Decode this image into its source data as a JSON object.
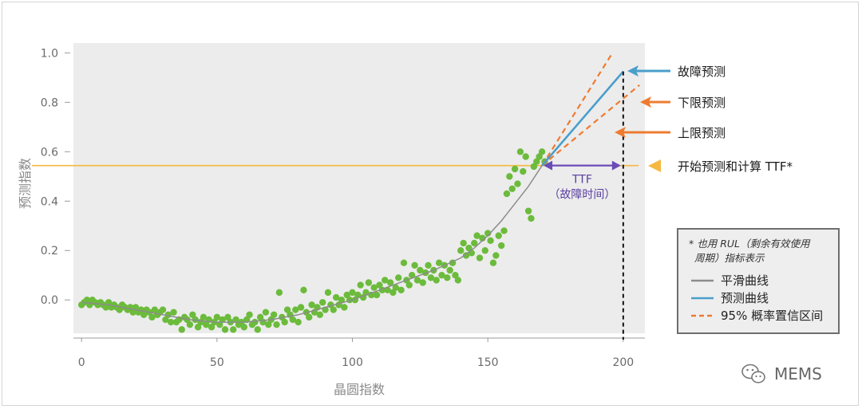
{
  "chart_data": {
    "type": "scatter",
    "xlabel": "晶圆指数",
    "ylabel": "预测指数",
    "xlim": [
      -3,
      208
    ],
    "ylim": [
      -0.135,
      1.04
    ],
    "x_ticks": [
      "0",
      "50",
      "100",
      "150",
      "200"
    ],
    "y_ticks": [
      "0.0",
      "0.2",
      "0.4",
      "0.6",
      "0.8",
      "1.0"
    ],
    "threshold": 0.544,
    "failure_x": 200,
    "scatter_points": [
      [
        0,
        -0.02
      ],
      [
        1,
        -0.01
      ],
      [
        2,
        0.0
      ],
      [
        3,
        -0.02
      ],
      [
        4,
        0.0
      ],
      [
        5,
        -0.01
      ],
      [
        6,
        -0.02
      ],
      [
        7,
        -0.01
      ],
      [
        8,
        -0.02
      ],
      [
        9,
        -0.03
      ],
      [
        10,
        -0.01
      ],
      [
        11,
        -0.03
      ],
      [
        12,
        -0.02
      ],
      [
        13,
        -0.03
      ],
      [
        14,
        -0.04
      ],
      [
        15,
        -0.02
      ],
      [
        16,
        -0.03
      ],
      [
        17,
        -0.04
      ],
      [
        18,
        -0.03
      ],
      [
        19,
        -0.05
      ],
      [
        20,
        -0.03
      ],
      [
        21,
        -0.05
      ],
      [
        22,
        -0.04
      ],
      [
        23,
        -0.06
      ],
      [
        24,
        -0.04
      ],
      [
        25,
        -0.05
      ],
      [
        26,
        -0.07
      ],
      [
        27,
        -0.04
      ],
      [
        28,
        -0.06
      ],
      [
        29,
        -0.05
      ],
      [
        30,
        -0.04
      ],
      [
        31,
        -0.08
      ],
      [
        32,
        -0.06
      ],
      [
        33,
        -0.09
      ],
      [
        34,
        -0.05
      ],
      [
        35,
        -0.09
      ],
      [
        36,
        -0.08
      ],
      [
        37,
        -0.12
      ],
      [
        38,
        -0.07
      ],
      [
        39,
        -0.08
      ],
      [
        40,
        -0.1
      ],
      [
        41,
        -0.06
      ],
      [
        42,
        -0.08
      ],
      [
        43,
        -0.11
      ],
      [
        44,
        -0.09
      ],
      [
        45,
        -0.07
      ],
      [
        46,
        -0.1
      ],
      [
        47,
        -0.08
      ],
      [
        48,
        -0.11
      ],
      [
        49,
        -0.09
      ],
      [
        50,
        -0.07
      ],
      [
        51,
        -0.1
      ],
      [
        52,
        -0.08
      ],
      [
        53,
        -0.12
      ],
      [
        54,
        -0.07
      ],
      [
        55,
        -0.09
      ],
      [
        56,
        -0.12
      ],
      [
        57,
        -0.08
      ],
      [
        58,
        -0.1
      ],
      [
        59,
        -0.09
      ],
      [
        60,
        -0.11
      ],
      [
        61,
        -0.08
      ],
      [
        62,
        -0.06
      ],
      [
        63,
        -0.1
      ],
      [
        64,
        -0.09
      ],
      [
        65,
        -0.12
      ],
      [
        66,
        -0.07
      ],
      [
        67,
        -0.09
      ],
      [
        68,
        -0.05
      ],
      [
        69,
        -0.1
      ],
      [
        70,
        -0.08
      ],
      [
        71,
        -0.06
      ],
      [
        72,
        -0.1
      ],
      [
        73,
        0.03
      ],
      [
        74,
        -0.07
      ],
      [
        75,
        -0.09
      ],
      [
        76,
        -0.04
      ],
      [
        77,
        -0.06
      ],
      [
        78,
        -0.08
      ],
      [
        79,
        -0.04
      ],
      [
        80,
        -0.09
      ],
      [
        81,
        -0.03
      ],
      [
        82,
        0.04
      ],
      [
        83,
        -0.05
      ],
      [
        84,
        -0.07
      ],
      [
        85,
        -0.02
      ],
      [
        86,
        -0.05
      ],
      [
        87,
        -0.03
      ],
      [
        88,
        -0.06
      ],
      [
        89,
        -0.01
      ],
      [
        90,
        -0.04
      ],
      [
        91,
        0.03
      ],
      [
        92,
        -0.02
      ],
      [
        93,
        -0.04
      ],
      [
        94,
        0.01
      ],
      [
        95,
        -0.02
      ],
      [
        96,
        0.0
      ],
      [
        97,
        -0.03
      ],
      [
        98,
        0.02
      ],
      [
        99,
        0.0
      ],
      [
        100,
        0.03
      ],
      [
        101,
        0.0
      ],
      [
        102,
        0.02
      ],
      [
        103,
        0.06
      ],
      [
        104,
        0.01
      ],
      [
        105,
        0.03
      ],
      [
        106,
        0.07
      ],
      [
        107,
        0.02
      ],
      [
        108,
        0.05
      ],
      [
        109,
        0.02
      ],
      [
        110,
        0.06
      ],
      [
        111,
        0.04
      ],
      [
        112,
        0.08
      ],
      [
        113,
        0.04
      ],
      [
        114,
        0.07
      ],
      [
        115,
        0.03
      ],
      [
        116,
        0.05
      ],
      [
        117,
        0.09
      ],
      [
        118,
        0.04
      ],
      [
        119,
        0.15
      ],
      [
        120,
        0.08
      ],
      [
        121,
        0.06
      ],
      [
        122,
        0.1
      ],
      [
        123,
        0.14
      ],
      [
        124,
        0.08
      ],
      [
        125,
        0.12
      ],
      [
        126,
        0.07
      ],
      [
        127,
        0.11
      ],
      [
        128,
        0.14
      ],
      [
        129,
        0.09
      ],
      [
        130,
        0.12
      ],
      [
        131,
        0.08
      ],
      [
        132,
        0.15
      ],
      [
        133,
        0.1
      ],
      [
        134,
        0.14
      ],
      [
        135,
        0.09
      ],
      [
        136,
        0.12
      ],
      [
        137,
        0.15
      ],
      [
        138,
        0.1
      ],
      [
        139,
        0.08
      ],
      [
        140,
        0.2
      ],
      [
        141,
        0.23
      ],
      [
        142,
        0.18
      ],
      [
        143,
        0.21
      ],
      [
        144,
        0.19
      ],
      [
        145,
        0.23
      ],
      [
        146,
        0.26
      ],
      [
        147,
        0.17
      ],
      [
        148,
        0.25
      ],
      [
        149,
        0.2
      ],
      [
        150,
        0.27
      ],
      [
        151,
        0.24
      ],
      [
        152,
        0.15
      ],
      [
        153,
        0.18
      ],
      [
        154,
        0.26
      ],
      [
        155,
        0.22
      ],
      [
        156,
        0.28
      ],
      [
        157,
        0.43
      ],
      [
        158,
        0.5
      ],
      [
        159,
        0.45
      ],
      [
        160,
        0.53
      ],
      [
        161,
        0.47
      ],
      [
        162,
        0.6
      ],
      [
        163,
        0.52
      ],
      [
        164,
        0.58
      ],
      [
        165,
        0.36
      ],
      [
        166,
        0.33
      ],
      [
        167,
        0.54
      ],
      [
        168,
        0.56
      ],
      [
        169,
        0.58
      ],
      [
        170,
        0.6
      ],
      [
        171,
        0.56
      ]
    ],
    "smooth_curve": [
      [
        0,
        -0.01
      ],
      [
        10,
        -0.02
      ],
      [
        20,
        -0.04
      ],
      [
        30,
        -0.06
      ],
      [
        40,
        -0.08
      ],
      [
        50,
        -0.09
      ],
      [
        60,
        -0.09
      ],
      [
        70,
        -0.08
      ],
      [
        80,
        -0.06
      ],
      [
        90,
        -0.03
      ],
      [
        100,
        0.0
      ],
      [
        110,
        0.04
      ],
      [
        120,
        0.08
      ],
      [
        130,
        0.12
      ],
      [
        140,
        0.17
      ],
      [
        145,
        0.21
      ],
      [
        150,
        0.26
      ],
      [
        155,
        0.32
      ],
      [
        160,
        0.39
      ],
      [
        165,
        0.46
      ],
      [
        170,
        0.544
      ]
    ],
    "forecast": [
      [
        170,
        0.544
      ],
      [
        200,
        0.925
      ]
    ],
    "upper_bound": [
      [
        170,
        0.544
      ],
      [
        196,
        1.0
      ]
    ],
    "lower_bound": [
      [
        170,
        0.544
      ],
      [
        206,
        0.87
      ]
    ],
    "annotations": {
      "failure_forecast": "故障预测",
      "lower_forecast": "下限预测",
      "upper_forecast": "上限预测",
      "start_ttf": "开始预测和计算 TTF*",
      "ttf_label": "TTF",
      "ttf_sub": "（故障时间）"
    },
    "legend": {
      "note_line1": "* 也用 RUL（剩余有效使用",
      "note_line2": "周期）指标表示",
      "items": [
        "平滑曲线",
        "预测曲线",
        "95% 概率置信区间"
      ]
    },
    "colors": {
      "plot_bg": "#ececec",
      "points": "#6cbb3c",
      "smooth": "#8c8c8c",
      "forecast": "#4a9ecb",
      "bounds": "#ee7b30",
      "threshold": "#f5b840",
      "ttf": "#6a4bb8",
      "failure_marker": "#111111"
    }
  },
  "watermark": "MEMS"
}
